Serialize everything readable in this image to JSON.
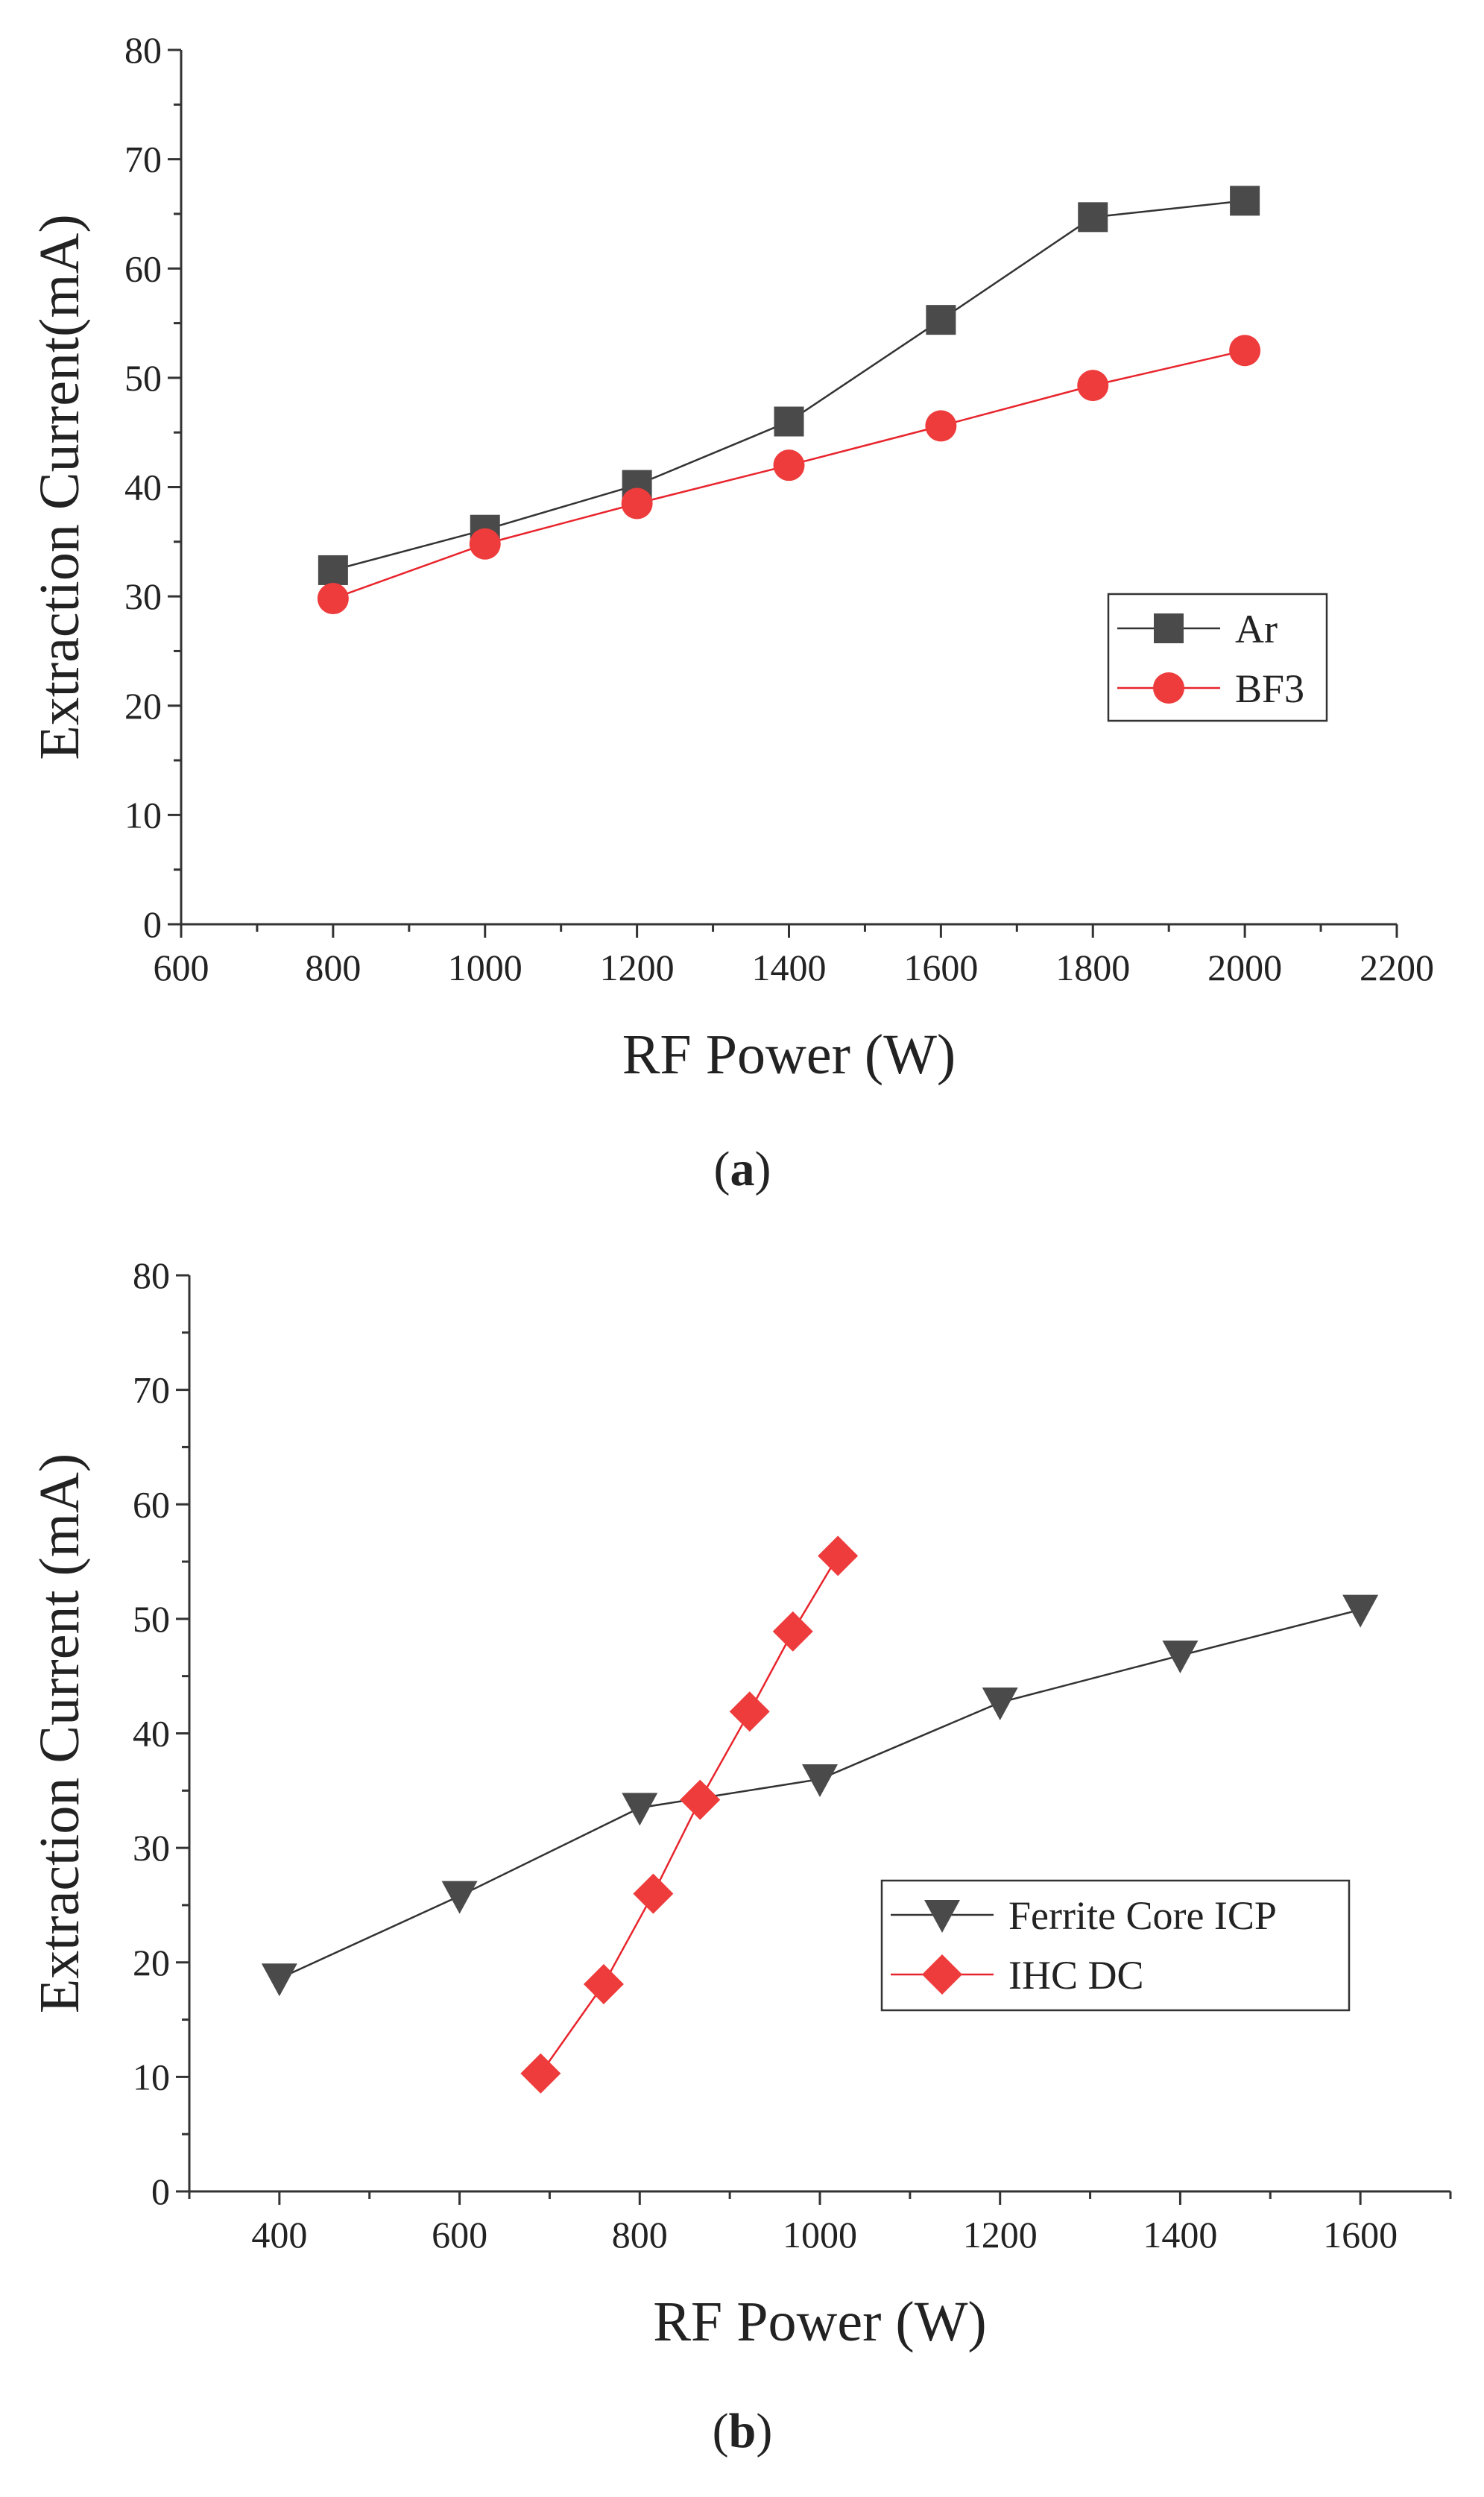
{
  "chart_data": [
    {
      "panel_label": "a",
      "type": "line",
      "title": "",
      "xlabel": "RF Power (W)",
      "ylabel": "Extraction Current(mA)",
      "xlim": [
        600,
        2200
      ],
      "ylim": [
        0,
        80
      ],
      "xticks": [
        600,
        800,
        1000,
        1200,
        1400,
        1600,
        1800,
        2000,
        2200
      ],
      "yticks": [
        0,
        10,
        20,
        30,
        40,
        50,
        60,
        70,
        80
      ],
      "legend_position": "right",
      "series": [
        {
          "name": "Ar",
          "marker": "square",
          "color": "#4a4a4a",
          "line_color": "#333333",
          "x": [
            800,
            1000,
            1200,
            1400,
            1600,
            1800,
            2000
          ],
          "y": [
            32.4,
            36.1,
            40.2,
            46.0,
            55.3,
            64.7,
            66.2
          ]
        },
        {
          "name": "BF3",
          "marker": "circle",
          "color": "#ee3b3b",
          "line_color": "#e8242c",
          "x": [
            800,
            1000,
            1200,
            1400,
            1600,
            1800,
            2000
          ],
          "y": [
            29.8,
            34.8,
            38.5,
            42.0,
            45.6,
            49.3,
            52.5
          ]
        }
      ]
    },
    {
      "panel_label": "b",
      "type": "line",
      "title": "",
      "xlabel": "RF Power (W)",
      "ylabel": "Extraction Current (mA)",
      "xlim": [
        300,
        1700
      ],
      "ylim": [
        0,
        80
      ],
      "xticks": [
        400,
        600,
        800,
        1000,
        1200,
        1400,
        1600
      ],
      "yticks": [
        0,
        10,
        20,
        30,
        40,
        50,
        60,
        70,
        80
      ],
      "legend_position": "lower-right",
      "series": [
        {
          "name": "Ferrite Core ICP",
          "marker": "triangle-down",
          "color": "#4a4a4a",
          "line_color": "#333333",
          "x": [
            400,
            600,
            800,
            1000,
            1200,
            1400,
            1600
          ],
          "y": [
            18.6,
            25.8,
            33.5,
            36.0,
            42.7,
            46.8,
            50.8
          ]
        },
        {
          "name": "IHC DC",
          "marker": "diamond",
          "color": "#ee3b3b",
          "line_color": "#e8242c",
          "x": [
            690,
            760,
            815,
            867,
            922,
            970,
            1020
          ],
          "y": [
            10.3,
            18.1,
            26.0,
            34.2,
            41.9,
            48.9,
            55.5
          ]
        }
      ]
    }
  ]
}
